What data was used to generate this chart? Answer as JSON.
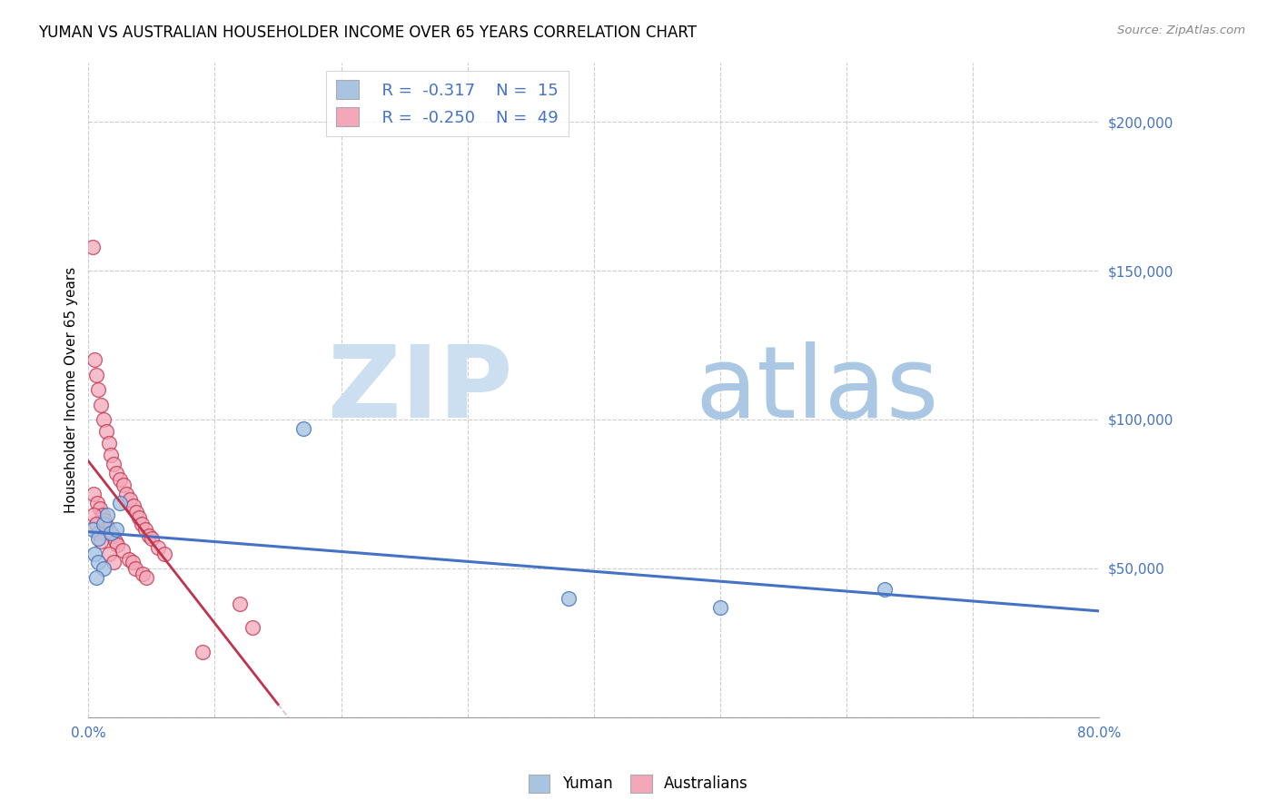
{
  "title": "YUMAN VS AUSTRALIAN HOUSEHOLDER INCOME OVER 65 YEARS CORRELATION CHART",
  "source": "Source: ZipAtlas.com",
  "ylabel": "Householder Income Over 65 years",
  "x_ticks": [
    0.0,
    0.1,
    0.2,
    0.3,
    0.4,
    0.5,
    0.6,
    0.7,
    0.8
  ],
  "x_tick_labels": [
    "0.0%",
    "",
    "",
    "",
    "",
    "",
    "",
    "",
    "80.0%"
  ],
  "y_ticks": [
    0,
    50000,
    100000,
    150000,
    200000
  ],
  "y_tick_labels": [
    "",
    "$50,000",
    "$100,000",
    "$150,000",
    "$200,000"
  ],
  "xlim": [
    0.0,
    0.8
  ],
  "ylim": [
    0,
    220000
  ],
  "blue_color": "#a8c4e0",
  "blue_line_color": "#4472c4",
  "pink_color": "#f4a7b9",
  "pink_line_color": "#c0334d",
  "yuman_x": [
    0.003,
    0.008,
    0.012,
    0.018,
    0.005,
    0.022,
    0.015,
    0.008,
    0.012,
    0.006,
    0.5,
    0.63,
    0.38,
    0.17,
    0.025
  ],
  "yuman_y": [
    63000,
    60000,
    65000,
    62000,
    55000,
    63000,
    68000,
    52000,
    50000,
    47000,
    37000,
    43000,
    40000,
    97000,
    72000
  ],
  "australians_x": [
    0.003,
    0.005,
    0.006,
    0.008,
    0.01,
    0.012,
    0.014,
    0.016,
    0.018,
    0.02,
    0.022,
    0.025,
    0.028,
    0.03,
    0.033,
    0.036,
    0.038,
    0.04,
    0.042,
    0.045,
    0.048,
    0.05,
    0.055,
    0.06,
    0.004,
    0.007,
    0.009,
    0.011,
    0.013,
    0.015,
    0.017,
    0.019,
    0.021,
    0.023,
    0.027,
    0.032,
    0.035,
    0.037,
    0.043,
    0.046,
    0.004,
    0.006,
    0.008,
    0.01,
    0.016,
    0.02,
    0.12,
    0.13,
    0.09
  ],
  "australians_y": [
    158000,
    120000,
    115000,
    110000,
    105000,
    100000,
    96000,
    92000,
    88000,
    85000,
    82000,
    80000,
    78000,
    75000,
    73000,
    71000,
    69000,
    67000,
    65000,
    63000,
    61000,
    60000,
    57000,
    55000,
    75000,
    72000,
    70000,
    68000,
    66000,
    64000,
    62000,
    61000,
    59000,
    58000,
    56000,
    53000,
    52000,
    50000,
    48000,
    47000,
    68000,
    65000,
    62000,
    59000,
    55000,
    52000,
    38000,
    30000,
    22000
  ]
}
